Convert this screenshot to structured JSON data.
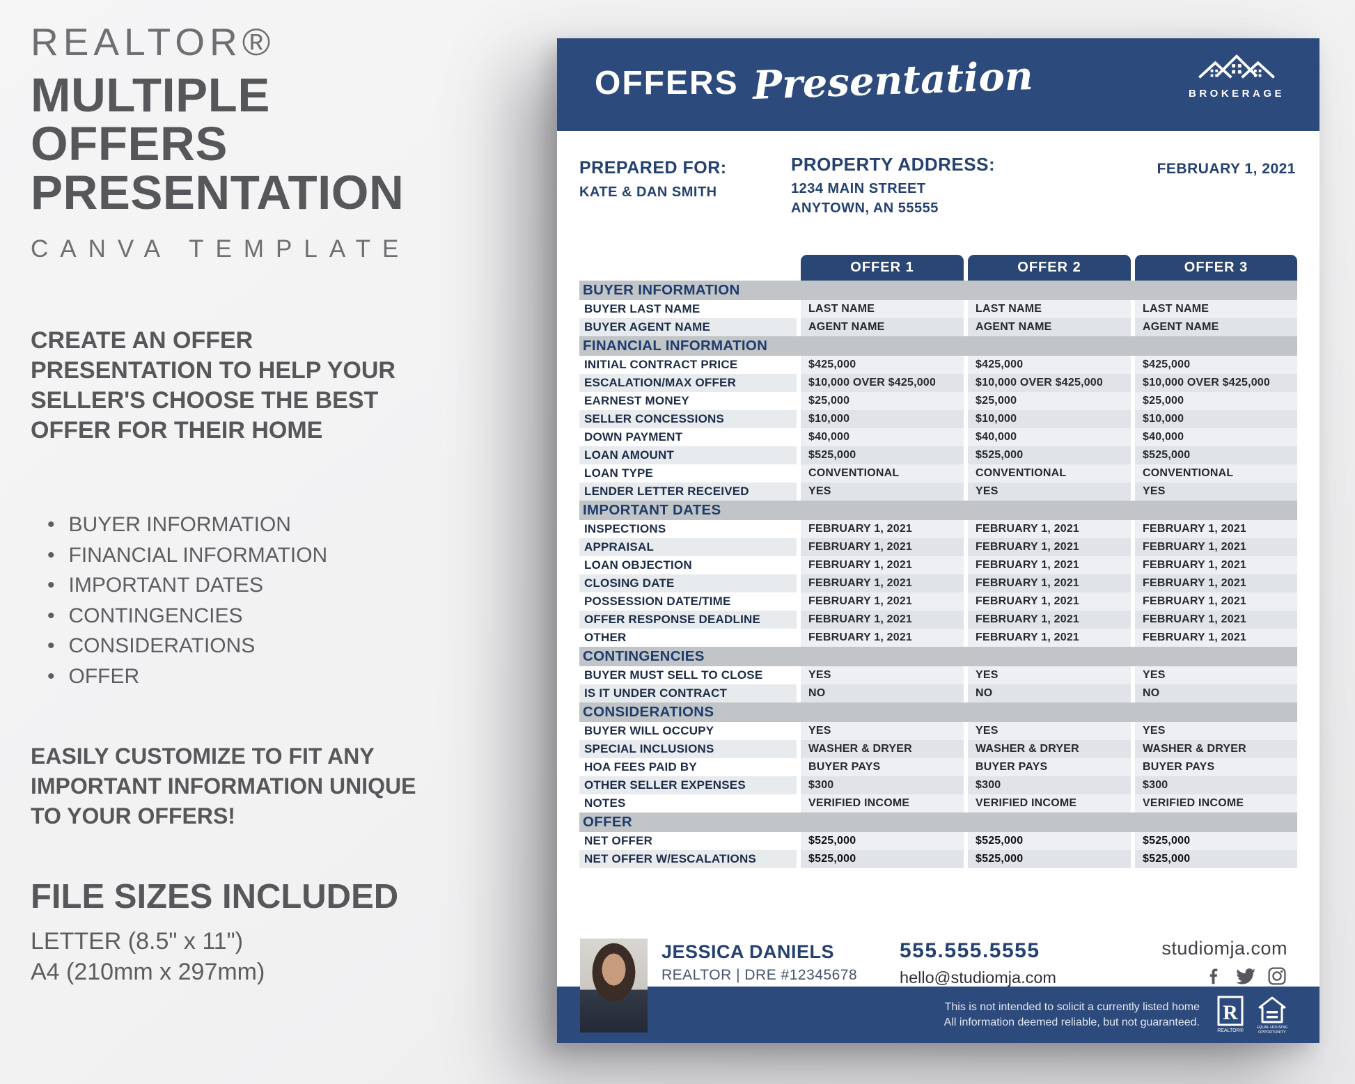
{
  "left_panel": {
    "kicker": "REALTOR®",
    "title_lines": [
      "MULTIPLE",
      "OFFERS",
      "PRESENTATION"
    ],
    "subtitle": "CANVA TEMPLATE",
    "description_lines": [
      "CREATE AN OFFER",
      "PRESENTATION TO HELP YOUR",
      "SELLER'S CHOOSE THE BEST",
      "OFFER FOR THEIR HOME"
    ],
    "bullets": [
      "BUYER INFORMATION",
      "FINANCIAL INFORMATION",
      "IMPORTANT DATES",
      "CONTINGENCIES",
      "CONSIDERATIONS",
      "OFFER"
    ],
    "customize_lines": [
      "EASILY CUSTOMIZE TO FIT ANY",
      "IMPORTANT INFORMATION UNIQUE",
      "TO YOUR OFFERS!"
    ],
    "file_sizes_heading": "FILE SIZES INCLUDED",
    "file_sizes": [
      "LETTER (8.5\" x 11\")",
      "A4 (210mm x 297mm)"
    ]
  },
  "document": {
    "header": {
      "title_main": "OFFERS",
      "title_script": "Presentation",
      "brokerage": "BROKERAGE"
    },
    "prepared_for": {
      "label": "PREPARED FOR:",
      "value": "KATE & DAN SMITH"
    },
    "property_address": {
      "label": "PROPERTY ADDRESS:",
      "lines": [
        "1234 MAIN STREET",
        "ANYTOWN, AN 55555"
      ]
    },
    "date": "FEBRUARY 1, 2021",
    "table": {
      "offer_headers": [
        "OFFER 1",
        "OFFER 2",
        "OFFER 3"
      ],
      "sections": [
        {
          "title": "BUYER INFORMATION",
          "rows": [
            {
              "label": "BUYER LAST NAME",
              "values": [
                "LAST NAME",
                "LAST NAME",
                "LAST NAME"
              ]
            },
            {
              "label": "BUYER AGENT NAME",
              "values": [
                "AGENT NAME",
                "AGENT NAME",
                "AGENT NAME"
              ]
            }
          ]
        },
        {
          "title": "FINANCIAL INFORMATION",
          "rows": [
            {
              "label": "INITIAL CONTRACT PRICE",
              "values": [
                "$425,000",
                "$425,000",
                "$425,000"
              ]
            },
            {
              "label": "ESCALATION/MAX OFFER",
              "values": [
                "$10,000 OVER $425,000",
                "$10,000 OVER $425,000",
                "$10,000 OVER $425,000"
              ]
            },
            {
              "label": "EARNEST MONEY",
              "values": [
                "$25,000",
                "$25,000",
                "$25,000"
              ]
            },
            {
              "label": "SELLER CONCESSIONS",
              "values": [
                "$10,000",
                "$10,000",
                "$10,000"
              ]
            },
            {
              "label": "DOWN PAYMENT",
              "values": [
                "$40,000",
                "$40,000",
                "$40,000"
              ]
            },
            {
              "label": "LOAN AMOUNT",
              "values": [
                "$525,000",
                "$525,000",
                "$525,000"
              ]
            },
            {
              "label": "LOAN TYPE",
              "values": [
                "CONVENTIONAL",
                "CONVENTIONAL",
                "CONVENTIONAL"
              ]
            },
            {
              "label": "LENDER LETTER RECEIVED",
              "values": [
                "YES",
                "YES",
                "YES"
              ]
            }
          ]
        },
        {
          "title": "IMPORTANT DATES",
          "rows": [
            {
              "label": "INSPECTIONS",
              "values": [
                "FEBRUARY 1, 2021",
                "FEBRUARY 1, 2021",
                "FEBRUARY 1, 2021"
              ]
            },
            {
              "label": "APPRAISAL",
              "values": [
                "FEBRUARY 1, 2021",
                "FEBRUARY 1, 2021",
                "FEBRUARY 1, 2021"
              ]
            },
            {
              "label": "LOAN OBJECTION",
              "values": [
                "FEBRUARY 1, 2021",
                "FEBRUARY 1, 2021",
                "FEBRUARY 1, 2021"
              ]
            },
            {
              "label": "CLOSING DATE",
              "values": [
                "FEBRUARY 1, 2021",
                "FEBRUARY 1, 2021",
                "FEBRUARY 1, 2021"
              ]
            },
            {
              "label": "POSSESSION DATE/TIME",
              "values": [
                "FEBRUARY 1, 2021",
                "FEBRUARY 1, 2021",
                "FEBRUARY 1, 2021"
              ]
            },
            {
              "label": "OFFER RESPONSE DEADLINE",
              "values": [
                "FEBRUARY 1, 2021",
                "FEBRUARY 1, 2021",
                "FEBRUARY 1, 2021"
              ]
            },
            {
              "label": "OTHER",
              "values": [
                "FEBRUARY 1, 2021",
                "FEBRUARY 1, 2021",
                "FEBRUARY 1, 2021"
              ]
            }
          ]
        },
        {
          "title": "CONTINGENCIES",
          "rows": [
            {
              "label": "BUYER MUST SELL TO CLOSE",
              "values": [
                "YES",
                "YES",
                "YES"
              ]
            },
            {
              "label": "IS IT UNDER CONTRACT",
              "values": [
                "NO",
                "NO",
                "NO"
              ]
            }
          ]
        },
        {
          "title": "CONSIDERATIONS",
          "rows": [
            {
              "label": "BUYER WILL OCCUPY",
              "values": [
                "YES",
                "YES",
                "YES"
              ]
            },
            {
              "label": "SPECIAL INCLUSIONS",
              "values": [
                "WASHER & DRYER",
                "WASHER & DRYER",
                "WASHER & DRYER"
              ]
            },
            {
              "label": "HOA FEES PAID BY",
              "values": [
                "BUYER PAYS",
                "BUYER PAYS",
                "BUYER PAYS"
              ]
            },
            {
              "label": "OTHER SELLER EXPENSES",
              "values": [
                "$300",
                "$300",
                "$300"
              ]
            },
            {
              "label": "NOTES",
              "values": [
                "VERIFIED INCOME",
                "VERIFIED INCOME",
                "VERIFIED INCOME"
              ]
            }
          ]
        },
        {
          "title": "OFFER",
          "bold_values": true,
          "rows": [
            {
              "label": "NET OFFER",
              "values": [
                "$525,000",
                "$525,000",
                "$525,000"
              ]
            },
            {
              "label": "NET OFFER W/ESCALATIONS",
              "values": [
                "$525,000",
                "$525,000",
                "$525,000"
              ]
            }
          ]
        }
      ]
    },
    "footer": {
      "agent_name": "JESSICA DANIELS",
      "agent_title": "REALTOR | DRE #12345678",
      "phone": "555.555.5555",
      "email": "hello@studiomja.com",
      "website": "studiomja.com",
      "social_icons": [
        "facebook-icon",
        "twitter-icon",
        "instagram-icon"
      ],
      "disclaimer_lines": [
        "This is not intended to solicit a currently listed home",
        "All information deemed reliable, but not guaranteed."
      ],
      "realtor_box_letter": "R",
      "realtor_box_caption": "REALTOR®",
      "equal_housing_caption_1": "EQUAL HOUSING",
      "equal_housing_caption_2": "OPPORTUNITY"
    }
  },
  "colors": {
    "navy_band": "#2d4a7c",
    "navy_text": "#24416f",
    "section_band_gray": "#c2c5c8",
    "row_light": "#edeff2",
    "row_dark": "#e0e4e9",
    "left_text_gray": "#56575a"
  }
}
